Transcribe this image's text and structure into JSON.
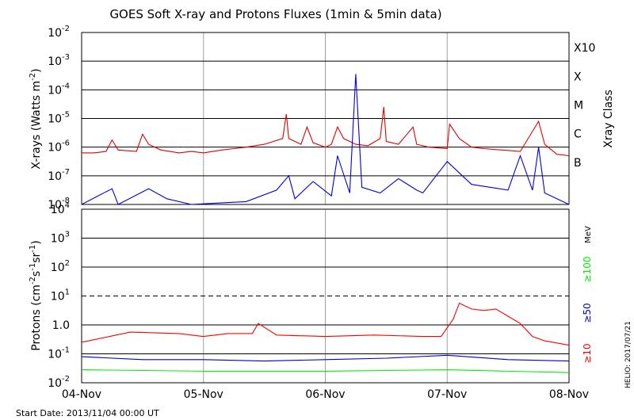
{
  "title": "GOES Soft X-ray and Protons Fluxes   (1min & 5min data)",
  "start_date": "Start Date: 2013/11/04 00:00 UT",
  "credit": "HELIO: 2017/07/21",
  "colors": {
    "xray_long": "#e00000",
    "xray_short": "#0000e0",
    "p10": "#ff0000",
    "p50": "#0000cc",
    "p100": "#00ee00",
    "grid": "#000000",
    "day_line": "#a0a0a0"
  },
  "chart_data": [
    {
      "type": "line",
      "panel": "xray",
      "ylabel_text": "X-rays (Watts m",
      "ylabel_sup": "-2",
      "ylabel_close": ")",
      "yscale": "log",
      "ylim_exp": [
        -8,
        -2
      ],
      "ytick_exponents": [
        "-8",
        "-7",
        "-6",
        "-5",
        "-4",
        "-3",
        "-2"
      ],
      "right_axis_title": "Xray Class",
      "class_labels": [
        {
          "label": "B",
          "exp": -7
        },
        {
          "label": "C",
          "exp": -6
        },
        {
          "label": "M",
          "exp": -5
        },
        {
          "label": "X",
          "exp": -4
        },
        {
          "label": "X10",
          "exp": -3
        }
      ],
      "xlim_days": [
        0,
        4
      ],
      "series": [
        {
          "color": "#e00000",
          "points": [
            [
              0,
              -6.2
            ],
            [
              0.1,
              -6.2
            ],
            [
              0.2,
              -6.15
            ],
            [
              0.25,
              -5.75
            ],
            [
              0.3,
              -6.1
            ],
            [
              0.45,
              -6.15
            ],
            [
              0.5,
              -5.55
            ],
            [
              0.55,
              -5.9
            ],
            [
              0.65,
              -6.1
            ],
            [
              0.8,
              -6.2
            ],
            [
              0.9,
              -6.15
            ],
            [
              1.0,
              -6.2
            ],
            [
              1.15,
              -6.1
            ],
            [
              1.25,
              -6.05
            ],
            [
              1.35,
              -6.0
            ],
            [
              1.5,
              -5.9
            ],
            [
              1.65,
              -5.7
            ],
            [
              1.68,
              -4.85
            ],
            [
              1.7,
              -5.7
            ],
            [
              1.8,
              -5.9
            ],
            [
              1.85,
              -5.3
            ],
            [
              1.9,
              -5.85
            ],
            [
              2.0,
              -6.0
            ],
            [
              2.05,
              -5.9
            ],
            [
              2.1,
              -5.3
            ],
            [
              2.15,
              -5.7
            ],
            [
              2.25,
              -5.9
            ],
            [
              2.35,
              -5.95
            ],
            [
              2.45,
              -5.7
            ],
            [
              2.48,
              -4.6
            ],
            [
              2.5,
              -5.8
            ],
            [
              2.6,
              -5.9
            ],
            [
              2.72,
              -5.3
            ],
            [
              2.75,
              -5.9
            ],
            [
              2.85,
              -6.0
            ],
            [
              3.0,
              -6.05
            ],
            [
              3.02,
              -5.2
            ],
            [
              3.1,
              -5.7
            ],
            [
              3.2,
              -6.0
            ],
            [
              3.3,
              -6.05
            ],
            [
              3.45,
              -6.1
            ],
            [
              3.6,
              -6.15
            ],
            [
              3.75,
              -5.1
            ],
            [
              3.8,
              -5.9
            ],
            [
              3.9,
              -6.25
            ],
            [
              4.0,
              -6.3
            ]
          ]
        },
        {
          "color": "#0000e0",
          "points": [
            [
              0,
              -8.0
            ],
            [
              0.25,
              -7.45
            ],
            [
              0.3,
              -8.0
            ],
            [
              0.55,
              -7.45
            ],
            [
              0.7,
              -7.8
            ],
            [
              0.9,
              -8.0
            ],
            [
              1.35,
              -7.9
            ],
            [
              1.6,
              -7.5
            ],
            [
              1.7,
              -7.0
            ],
            [
              1.75,
              -7.8
            ],
            [
              1.9,
              -7.2
            ],
            [
              2.05,
              -7.7
            ],
            [
              2.1,
              -6.3
            ],
            [
              2.2,
              -7.6
            ],
            [
              2.25,
              -3.45
            ],
            [
              2.3,
              -7.4
            ],
            [
              2.45,
              -7.6
            ],
            [
              2.6,
              -7.1
            ],
            [
              2.75,
              -7.5
            ],
            [
              2.8,
              -7.6
            ],
            [
              3.0,
              -6.5
            ],
            [
              3.2,
              -7.3
            ],
            [
              3.5,
              -7.5
            ],
            [
              3.6,
              -6.3
            ],
            [
              3.7,
              -7.5
            ],
            [
              3.75,
              -6.0
            ],
            [
              3.8,
              -7.6
            ],
            [
              4.0,
              -8.0
            ]
          ]
        }
      ]
    },
    {
      "type": "line",
      "panel": "protons",
      "ylabel_text": "Protons (cm",
      "ylabel_mid1": "-2",
      "ylabel_s": "s",
      "ylabel_mid2": "-1",
      "ylabel_sr": "sr",
      "ylabel_mid3": "-1",
      "ylabel_close": ")",
      "yscale": "log",
      "ylim_exp": [
        -2,
        4
      ],
      "ytick_labels": [
        "10<sup>-2</sup>",
        "10<sup>-1</sup>",
        "1.0",
        "10<sup>1</sup>",
        "10<sup>2</sup>",
        "10<sup>3</sup>",
        "10<sup>4</sup>"
      ],
      "dashed_threshold_exp": 1,
      "energy_unit": "MeV",
      "legend": [
        "≥10",
        "≥50",
        "≥100"
      ],
      "series": [
        {
          "name": "≥10",
          "color": "#ff0000",
          "points": [
            [
              0,
              -0.6
            ],
            [
              0.4,
              -0.25
            ],
            [
              0.8,
              -0.3
            ],
            [
              1.0,
              -0.4
            ],
            [
              1.2,
              -0.3
            ],
            [
              1.4,
              -0.3
            ],
            [
              1.45,
              0.05
            ],
            [
              1.6,
              -0.35
            ],
            [
              2.0,
              -0.4
            ],
            [
              2.4,
              -0.35
            ],
            [
              2.8,
              -0.4
            ],
            [
              2.95,
              -0.4
            ],
            [
              3.05,
              0.2
            ],
            [
              3.1,
              0.75
            ],
            [
              3.2,
              0.55
            ],
            [
              3.3,
              0.5
            ],
            [
              3.4,
              0.55
            ],
            [
              3.5,
              0.3
            ],
            [
              3.6,
              0.05
            ],
            [
              3.7,
              -0.4
            ],
            [
              3.8,
              -0.55
            ],
            [
              4.0,
              -0.7
            ]
          ]
        },
        {
          "name": "≥50",
          "color": "#0000cc",
          "points": [
            [
              0,
              -1.1
            ],
            [
              0.5,
              -1.2
            ],
            [
              1.0,
              -1.2
            ],
            [
              1.5,
              -1.25
            ],
            [
              2.0,
              -1.2
            ],
            [
              2.5,
              -1.15
            ],
            [
              3.0,
              -1.05
            ],
            [
              3.5,
              -1.2
            ],
            [
              4.0,
              -1.25
            ]
          ]
        },
        {
          "name": "≥100",
          "color": "#00ee00",
          "points": [
            [
              0,
              -1.55
            ],
            [
              1,
              -1.6
            ],
            [
              2,
              -1.6
            ],
            [
              3,
              -1.55
            ],
            [
              4,
              -1.65
            ]
          ]
        }
      ]
    }
  ],
  "x_ticks": [
    "04-Nov",
    "05-Nov",
    "06-Nov",
    "07-Nov",
    "08-Nov"
  ]
}
